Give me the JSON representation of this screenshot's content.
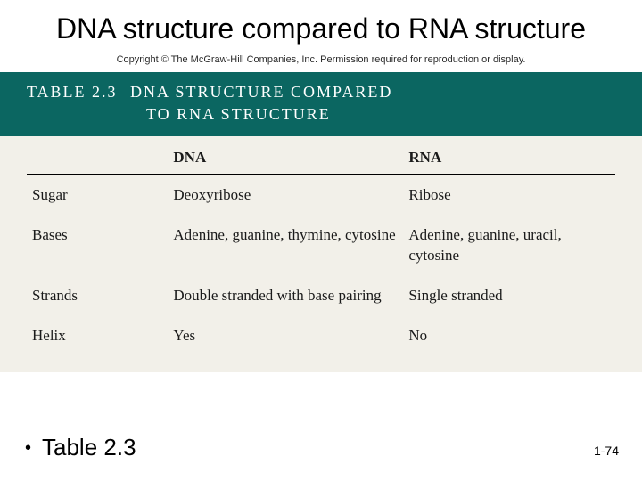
{
  "title": "DNA structure compared to RNA structure",
  "copyright": "Copyright © The McGraw-Hill Companies, Inc. Permission required for reproduction or display.",
  "table": {
    "header_label": "TABLE 2.3",
    "header_caption_line1": "DNA STRUCTURE COMPARED",
    "header_caption_line2": "TO RNA STRUCTURE",
    "band_bg": "#0b6661",
    "band_fg": "#ffffff",
    "body_bg": "#f2f0e9",
    "columns": [
      "",
      "DNA",
      "RNA"
    ],
    "rows": [
      {
        "label": "Sugar",
        "dna": "Deoxyribose",
        "rna": "Ribose"
      },
      {
        "label": "Bases",
        "dna": "Adenine, guanine, thymine, cytosine",
        "rna": "Adenine, guanine, uracil, cytosine"
      },
      {
        "label": "Strands",
        "dna": "Double stranded with base pairing",
        "rna": "Single stranded"
      },
      {
        "label": "Helix",
        "dna": "Yes",
        "rna": "No"
      }
    ]
  },
  "bullet": "Table 2.3",
  "page_number": "1-74"
}
